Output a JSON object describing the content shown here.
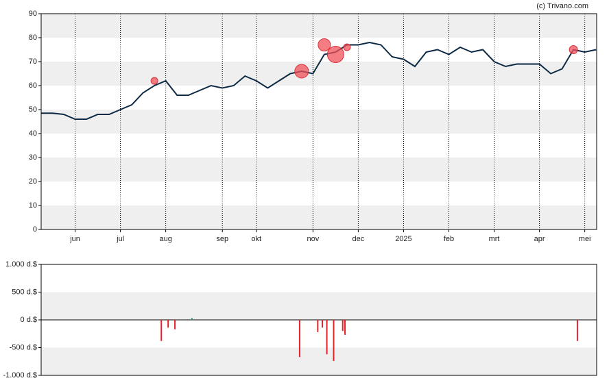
{
  "chart_data": [
    {
      "type": "line",
      "annotation": "(c) Trivano.com",
      "categories": [
        null,
        null,
        null,
        "jun",
        null,
        null,
        null,
        "jul",
        null,
        null,
        null,
        "aug",
        null,
        null,
        null,
        null,
        "sep",
        null,
        null,
        "okt",
        null,
        null,
        null,
        null,
        "nov",
        null,
        null,
        null,
        "dec",
        null,
        null,
        null,
        "2025",
        null,
        null,
        null,
        "feb",
        null,
        null,
        null,
        "mrt",
        null,
        null,
        null,
        "apr",
        null,
        null,
        null,
        "mei",
        null
      ],
      "series": [
        {
          "color": "#0d2a45",
          "values": [
            48.5,
            48.5,
            48,
            46,
            46,
            48,
            48,
            50,
            52,
            57,
            60,
            62,
            56,
            56,
            58,
            60,
            59,
            60,
            64,
            62,
            59,
            62,
            65,
            66,
            65,
            73,
            74,
            77,
            77,
            78,
            77,
            72,
            71,
            68,
            74,
            75,
            73,
            76,
            74,
            75,
            70,
            68,
            69,
            69,
            69,
            65,
            67,
            75,
            74,
            75
          ]
        },
        {
          "type": "bubble",
          "color": "#f0505a",
          "values": [
            null,
            null,
            null,
            null,
            null,
            null,
            null,
            null,
            null,
            null,
            62,
            null,
            null,
            null,
            null,
            null,
            null,
            null,
            null,
            null,
            null,
            null,
            null,
            66,
            null,
            77,
            73,
            76,
            null,
            null,
            null,
            null,
            null,
            null,
            null,
            null,
            null,
            null,
            null,
            null,
            null,
            null,
            null,
            null,
            null,
            null,
            null,
            75,
            null,
            null
          ],
          "sizes": [
            null,
            null,
            null,
            null,
            null,
            null,
            null,
            null,
            null,
            null,
            5,
            null,
            null,
            null,
            null,
            null,
            null,
            null,
            null,
            null,
            null,
            null,
            null,
            10,
            null,
            9,
            12,
            5,
            null,
            null,
            null,
            null,
            null,
            null,
            null,
            null,
            null,
            null,
            null,
            null,
            null,
            null,
            null,
            null,
            null,
            null,
            null,
            6,
            null,
            null
          ]
        }
      ],
      "ylim": [
        0,
        90
      ],
      "yticks": [
        0,
        10,
        20,
        30,
        40,
        50,
        60,
        70,
        80,
        90
      ],
      "grid": "bands"
    },
    {
      "type": "bar",
      "x": [
        10.6,
        11.2,
        11.8,
        13.3,
        22.8,
        24.4,
        24.8,
        25.2,
        25.8,
        26.6,
        26.8,
        47.3
      ],
      "values": [
        -380,
        -140,
        -170,
        35,
        -670,
        -220,
        -140,
        -620,
        -740,
        -200,
        -270,
        -380
      ],
      "colors": [
        "#e8202a",
        "#e8202a",
        "#e8202a",
        "#2a9a8a",
        "#e8202a",
        "#e8202a",
        "#e8202a",
        "#e8202a",
        "#e8202a",
        "#e8202a",
        "#e8202a",
        "#e8202a"
      ],
      "xlim": [
        0,
        49
      ],
      "ylim": [
        -1000,
        1000
      ],
      "yticks": [
        {
          "value": -1000,
          "label": "-1.000 d.$"
        },
        {
          "value": -500,
          "label": "-500 d.$"
        },
        {
          "value": 0,
          "label": "0 d.$"
        },
        {
          "value": 500,
          "label": "500 d.$"
        },
        {
          "value": 1000,
          "label": "1.000 d.$"
        }
      ],
      "grid": "bands"
    }
  ]
}
